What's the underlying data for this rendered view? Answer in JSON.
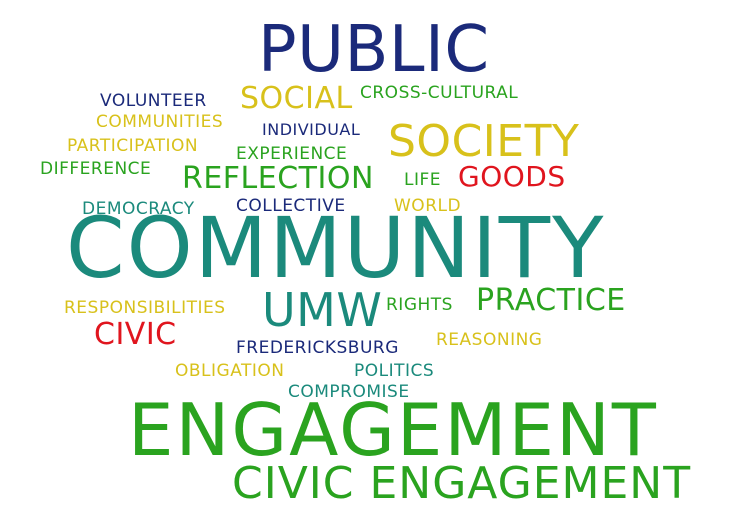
{
  "colors": {
    "navy": "#1b2a7a",
    "teal": "#1b8a7c",
    "gold": "#d8c11b",
    "green": "#2aa31f",
    "red": "#e0151e",
    "background": "#ffffff"
  },
  "words": {
    "public": "PUBLIC",
    "volunteer": "VOLUNTEER",
    "social": "SOCIAL",
    "cross_cultural": "CROSS-CULTURAL",
    "communities": "COMMUNITIES",
    "individual": "INDIVIDUAL",
    "society": "SOCIETY",
    "participation": "PARTICIPATION",
    "experience": "EXPERIENCE",
    "difference": "DIFFERENCE",
    "reflection": "REFLECTION",
    "life": "LIFE",
    "goods": "GOODS",
    "democracy": "DEMOCRACY",
    "collective": "COLLECTIVE",
    "world": "WORLD",
    "community": "COMMUNITY",
    "responsibilities": "RESPONSIBILITIES",
    "umw": "UMW",
    "rights": "RIGHTS",
    "practice": "PRACTICE",
    "civic": "CIVIC",
    "reasoning": "REASONING",
    "fredericksburg": "FREDERICKSBURG",
    "obligation": "OBLIGATION",
    "politics": "POLITICS",
    "compromise": "COMPROMISE",
    "engagement": "ENGAGEMENT",
    "civic_engagement": "CIVIC ENGAGEMENT"
  }
}
